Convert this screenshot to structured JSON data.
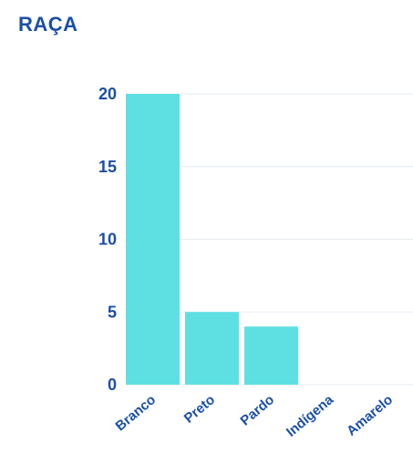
{
  "page": {
    "title": "RAÇA"
  },
  "colors": {
    "title": "#1a4fa8",
    "bar": "#5ee0e3",
    "grid": "#e6ebf2",
    "tick_label": "#1a4fa8"
  },
  "chart_data": {
    "type": "bar",
    "title": "",
    "xlabel": "",
    "ylabel": "",
    "categories": [
      "Branco",
      "Preto",
      "Pardo",
      "Indígena",
      "Amarelo"
    ],
    "values": [
      20,
      5,
      4,
      0,
      0
    ],
    "ylim": [
      0,
      20
    ],
    "yticks": [
      0,
      5,
      10,
      15,
      20
    ],
    "grid": true,
    "legend": "none"
  }
}
